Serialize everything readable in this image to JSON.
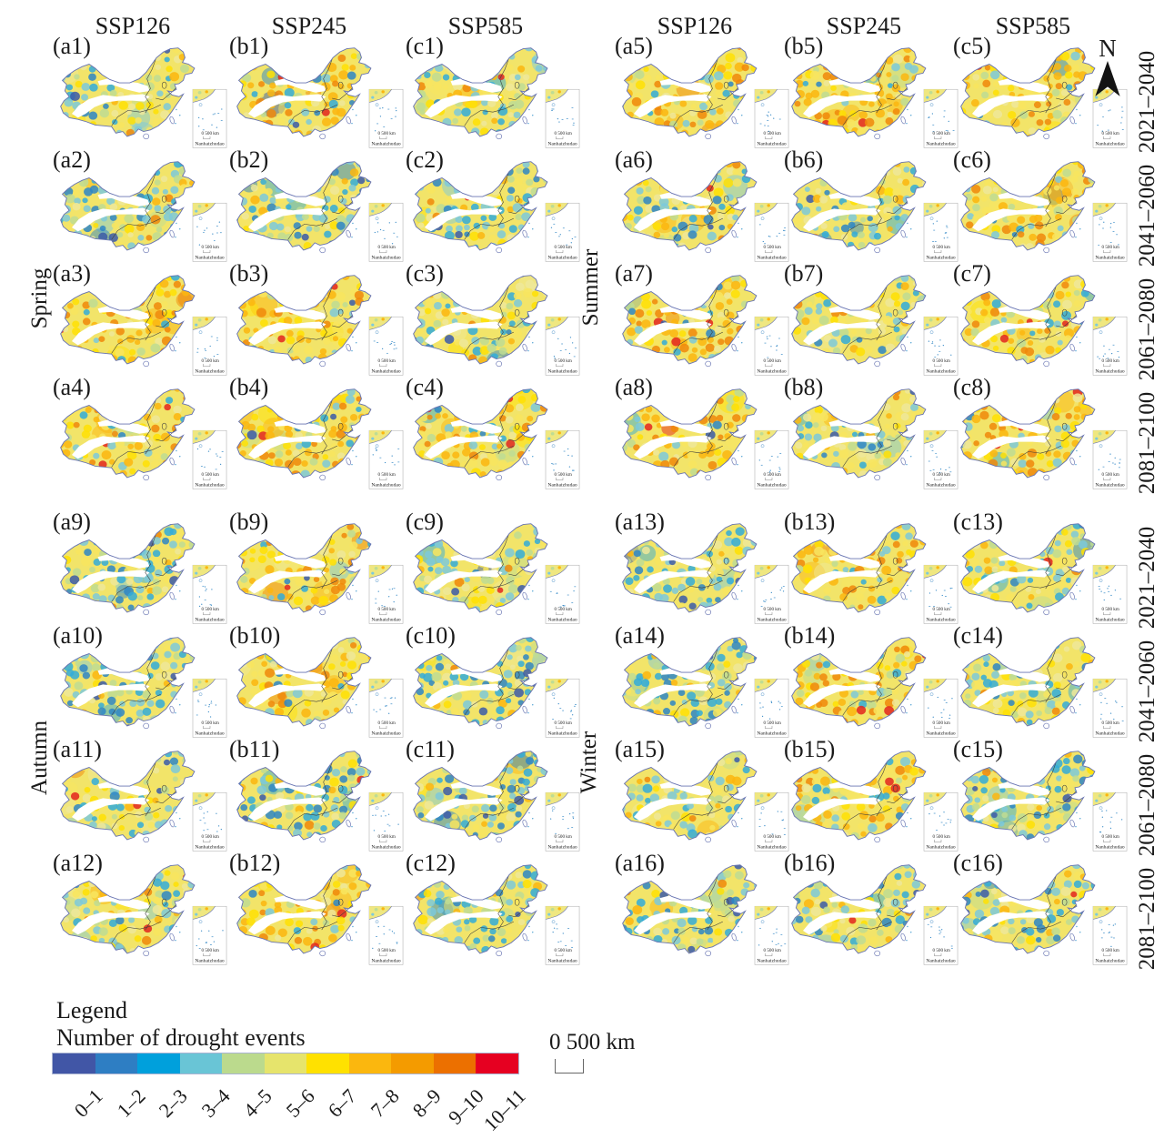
{
  "scenarios": [
    "SSP126",
    "SSP245",
    "SSP585"
  ],
  "periods": [
    "2021–2040",
    "2041–2060",
    "2061–2080",
    "2081–2100"
  ],
  "seasons": [
    "Spring",
    "Summer",
    "Autumn",
    "Winter"
  ],
  "north": {
    "label": "N"
  },
  "scale_bar": {
    "label": "0 500 km"
  },
  "inset": {
    "label": "Nanhaizhudao",
    "scale_label": "0 500 km"
  },
  "legend": {
    "title": "Legend",
    "subtitle": "Number of drought events",
    "classes": [
      {
        "range": "0–1",
        "color": "#4156A6"
      },
      {
        "range": "1–2",
        "color": "#2E7EC3"
      },
      {
        "range": "2–3",
        "color": "#00A0DC"
      },
      {
        "range": "3–4",
        "color": "#69C5D6"
      },
      {
        "range": "4–5",
        "color": "#BBDA8D"
      },
      {
        "range": "5–6",
        "color": "#E6E46C"
      },
      {
        "range": "6–7",
        "color": "#FFE100"
      },
      {
        "range": "7–8",
        "color": "#FBB70E"
      },
      {
        "range": "8–9",
        "color": "#F49B00"
      },
      {
        "range": "9–10",
        "color": "#EC7000"
      },
      {
        "range": "10–11",
        "color": "#E60021"
      }
    ]
  },
  "blocks": [
    {
      "season": "Spring",
      "position": "top-left",
      "rows": [
        {
          "period": "2021–2040",
          "panels": [
            {
              "id": "a1",
              "label": "(a1)",
              "tone": "mixed"
            },
            {
              "id": "b1",
              "label": "(b1)",
              "tone": "warm"
            },
            {
              "id": "c1",
              "label": "(c1)",
              "tone": "mixed"
            }
          ]
        },
        {
          "period": "2041–2060",
          "panels": [
            {
              "id": "a2",
              "label": "(a2)",
              "tone": "cool"
            },
            {
              "id": "b2",
              "label": "(b2)",
              "tone": "cool"
            },
            {
              "id": "c2",
              "label": "(c2)",
              "tone": "cool"
            }
          ]
        },
        {
          "period": "2061–2080",
          "panels": [
            {
              "id": "a3",
              "label": "(a3)",
              "tone": "warm"
            },
            {
              "id": "b3",
              "label": "(b3)",
              "tone": "warm"
            },
            {
              "id": "c3",
              "label": "(c3)",
              "tone": "mixed"
            }
          ]
        },
        {
          "period": "2081–2100",
          "panels": [
            {
              "id": "a4",
              "label": "(a4)",
              "tone": "warm"
            },
            {
              "id": "b4",
              "label": "(b4)",
              "tone": "warm"
            },
            {
              "id": "c4",
              "label": "(c4)",
              "tone": "warm"
            }
          ]
        }
      ]
    },
    {
      "season": "Summer",
      "position": "top-right",
      "rows": [
        {
          "period": "2021–2040",
          "panels": [
            {
              "id": "a5",
              "label": "(a5)",
              "tone": "warm"
            },
            {
              "id": "b5",
              "label": "(b5)",
              "tone": "warm"
            },
            {
              "id": "c5",
              "label": "(c5)",
              "tone": "warm"
            }
          ]
        },
        {
          "period": "2041–2060",
          "panels": [
            {
              "id": "a6",
              "label": "(a6)",
              "tone": "mixed"
            },
            {
              "id": "b6",
              "label": "(b6)",
              "tone": "mixed"
            },
            {
              "id": "c6",
              "label": "(c6)",
              "tone": "warm"
            }
          ]
        },
        {
          "period": "2061–2080",
          "panels": [
            {
              "id": "a7",
              "label": "(a7)",
              "tone": "warm"
            },
            {
              "id": "b7",
              "label": "(b7)",
              "tone": "mixed"
            },
            {
              "id": "c7",
              "label": "(c7)",
              "tone": "warm"
            }
          ]
        },
        {
          "period": "2081–2100",
          "panels": [
            {
              "id": "a8",
              "label": "(a8)",
              "tone": "warm"
            },
            {
              "id": "b8",
              "label": "(b8)",
              "tone": "mixed"
            },
            {
              "id": "c8",
              "label": "(c8)",
              "tone": "warm"
            }
          ]
        }
      ]
    },
    {
      "season": "Autumn",
      "position": "bottom-left",
      "rows": [
        {
          "period": "2021–2040",
          "panels": [
            {
              "id": "a9",
              "label": "(a9)",
              "tone": "cool"
            },
            {
              "id": "b9",
              "label": "(b9)",
              "tone": "warm"
            },
            {
              "id": "c9",
              "label": "(c9)",
              "tone": "mixed"
            }
          ]
        },
        {
          "period": "2041–2060",
          "panels": [
            {
              "id": "a10",
              "label": "(a10)",
              "tone": "cool"
            },
            {
              "id": "b10",
              "label": "(b10)",
              "tone": "warm"
            },
            {
              "id": "c10",
              "label": "(c10)",
              "tone": "cool"
            }
          ]
        },
        {
          "period": "2061–2080",
          "panels": [
            {
              "id": "a11",
              "label": "(a11)",
              "tone": "mixed"
            },
            {
              "id": "b11",
              "label": "(b11)",
              "tone": "cool"
            },
            {
              "id": "c11",
              "label": "(c11)",
              "tone": "cool"
            }
          ]
        },
        {
          "period": "2081–2100",
          "panels": [
            {
              "id": "a12",
              "label": "(a12)",
              "tone": "mixed"
            },
            {
              "id": "b12",
              "label": "(b12)",
              "tone": "warm"
            },
            {
              "id": "c12",
              "label": "(c12)",
              "tone": "cool"
            }
          ]
        }
      ]
    },
    {
      "season": "Winter",
      "position": "bottom-right",
      "rows": [
        {
          "period": "2021–2040",
          "panels": [
            {
              "id": "a13",
              "label": "(a13)",
              "tone": "cool"
            },
            {
              "id": "b13",
              "label": "(b13)",
              "tone": "warm"
            },
            {
              "id": "c13",
              "label": "(c13)",
              "tone": "mixed"
            }
          ]
        },
        {
          "period": "2041–2060",
          "panels": [
            {
              "id": "a14",
              "label": "(a14)",
              "tone": "cool"
            },
            {
              "id": "b14",
              "label": "(b14)",
              "tone": "warm"
            },
            {
              "id": "c14",
              "label": "(c14)",
              "tone": "mixed"
            }
          ]
        },
        {
          "period": "2061–2080",
          "panels": [
            {
              "id": "a15",
              "label": "(a15)",
              "tone": "mixed"
            },
            {
              "id": "b15",
              "label": "(b15)",
              "tone": "warm"
            },
            {
              "id": "c15",
              "label": "(c15)",
              "tone": "cool"
            }
          ]
        },
        {
          "period": "2081–2100",
          "panels": [
            {
              "id": "a16",
              "label": "(a16)",
              "tone": "cool"
            },
            {
              "id": "b16",
              "label": "(b16)",
              "tone": "mixed"
            },
            {
              "id": "c16",
              "label": "(c16)",
              "tone": "cool"
            }
          ]
        }
      ]
    }
  ]
}
